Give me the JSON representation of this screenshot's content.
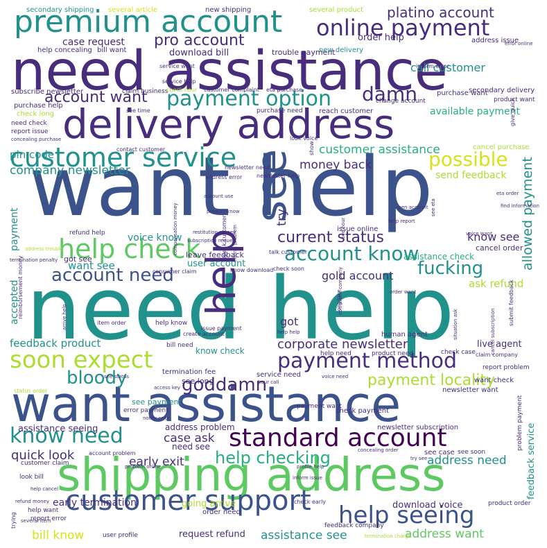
{
  "palette": {
    "purple": "#472d7b",
    "indigo": "#3b528b",
    "blue": "#2c728e",
    "teal": "#21918c",
    "green": "#28ae80",
    "lime": "#5ec962",
    "yellowgreen": "#addc30",
    "yellow": "#d8e219",
    "darkpurple": "#440154"
  },
  "words": [
    {
      "text": "want help",
      "color": "indigo"
    },
    {
      "text": "need help",
      "color": "teal"
    },
    {
      "text": "need assistance",
      "color": "purple"
    },
    {
      "text": "want assistance",
      "color": "indigo"
    },
    {
      "text": "shipping address",
      "color": "lime"
    },
    {
      "text": "delivery address",
      "color": "purple"
    },
    {
      "text": "premium account",
      "color": "teal"
    },
    {
      "text": "online payment",
      "color": "purple"
    },
    {
      "text": "customer service",
      "color": "teal"
    },
    {
      "text": "customer support",
      "color": "indigo"
    },
    {
      "text": "standard account",
      "color": "darkpurple"
    },
    {
      "text": "payment option",
      "color": "teal"
    },
    {
      "text": "help check",
      "color": "lime"
    },
    {
      "text": "soon expect",
      "color": "yellowgreen"
    },
    {
      "text": "help seeing",
      "color": "indigo"
    },
    {
      "text": "payment method",
      "color": "purple"
    },
    {
      "text": "help",
      "color": "purple"
    },
    {
      "text": "see",
      "color": "indigo"
    },
    {
      "text": "account know",
      "color": "teal"
    },
    {
      "text": "account need",
      "color": "indigo"
    },
    {
      "text": "current status",
      "color": "purple"
    },
    {
      "text": "know need",
      "color": "teal"
    },
    {
      "text": "help checking",
      "color": "green"
    },
    {
      "text": "bloody",
      "color": "teal"
    },
    {
      "text": "goddamn",
      "color": "purple"
    },
    {
      "text": "payment locality",
      "color": "yellowgreen"
    },
    {
      "text": "fucking",
      "color": "teal"
    },
    {
      "text": "account want",
      "color": "purple"
    },
    {
      "text": "damn",
      "color": "purple"
    },
    {
      "text": "possible",
      "color": "yellow"
    },
    {
      "text": "pro account",
      "color": "purple"
    },
    {
      "text": "platino account",
      "color": "purple"
    },
    {
      "text": "customer assistance",
      "color": "green"
    },
    {
      "text": "company newsletter",
      "color": "teal"
    },
    {
      "text": "money back",
      "color": "purple"
    },
    {
      "text": "allowed payment",
      "color": "teal"
    },
    {
      "text": "gold account",
      "color": "purple"
    },
    {
      "text": "corporate newsletter",
      "color": "purple"
    },
    {
      "text": "case ask",
      "color": "purple"
    },
    {
      "text": "quick look",
      "color": "purple"
    },
    {
      "text": "early exit",
      "color": "purple"
    },
    {
      "text": "address need",
      "color": "teal"
    },
    {
      "text": "assistance see",
      "color": "teal"
    },
    {
      "text": "address want",
      "color": "lime"
    },
    {
      "text": "bill know",
      "color": "yellow"
    },
    {
      "text": "know see",
      "color": "purple"
    },
    {
      "text": "ask refund",
      "color": "yellowgreen"
    },
    {
      "text": "call customer",
      "color": "teal"
    },
    {
      "text": "available payment",
      "color": "green"
    },
    {
      "text": "pin code",
      "color": "teal"
    },
    {
      "text": "want see",
      "color": "teal"
    },
    {
      "text": "feedback product",
      "color": "teal"
    },
    {
      "text": "try",
      "color": "purple"
    },
    {
      "text": "got",
      "color": "purple"
    },
    {
      "text": "got see",
      "color": "purple"
    },
    {
      "text": "accepted",
      "color": "teal"
    },
    {
      "text": "payment",
      "color": "teal"
    },
    {
      "text": "voice know",
      "color": "teal"
    },
    {
      "text": "user account",
      "color": "teal"
    },
    {
      "text": "download bill",
      "color": "purple"
    },
    {
      "text": "case request",
      "color": "purple"
    },
    {
      "text": "order help",
      "color": "purple"
    },
    {
      "text": "send feedback",
      "color": "yellowgreen"
    },
    {
      "text": "early termination",
      "color": "purple"
    },
    {
      "text": "going arrive",
      "color": "yellowgreen"
    },
    {
      "text": "download voice",
      "color": "purple"
    },
    {
      "text": "request refund",
      "color": "purple"
    },
    {
      "text": "see long",
      "color": "purple"
    },
    {
      "text": "see payment",
      "color": "teal"
    },
    {
      "text": "assistance seeing",
      "color": "purple"
    },
    {
      "text": "address problem",
      "color": "purple"
    },
    {
      "text": "need see",
      "color": "purple"
    },
    {
      "text": "feedback service",
      "color": "teal"
    },
    {
      "text": "live agent",
      "color": "purple"
    },
    {
      "text": "know check",
      "color": "teal"
    },
    {
      "text": "cancel order",
      "color": "purple"
    },
    {
      "text": "assistance check",
      "color": "green"
    },
    {
      "text": "leave feedback",
      "color": "purple"
    },
    {
      "text": "termination fee",
      "color": "purple"
    },
    {
      "text": "secondary shipping",
      "color": "teal"
    },
    {
      "text": "several article",
      "color": "yellow"
    },
    {
      "text": "new shipping",
      "color": "purple"
    },
    {
      "text": "several product",
      "color": "yellowgreen"
    },
    {
      "text": "trouble payment",
      "color": "purple"
    },
    {
      "text": "address issue",
      "color": "purple"
    },
    {
      "text": "help concealing",
      "color": "purple"
    },
    {
      "text": "bill want",
      "color": "purple"
    },
    {
      "text": "new delivery",
      "color": "teal"
    },
    {
      "text": "inform error",
      "color": "purple"
    },
    {
      "text": "service want",
      "color": "purple"
    },
    {
      "text": "service help",
      "color": "purple"
    },
    {
      "text": "subscribe newsletter",
      "color": "purple"
    },
    {
      "text": "claim business",
      "color": "purple"
    },
    {
      "text": "check hour",
      "color": "yellowgreen"
    },
    {
      "text": "customer complaint",
      "color": "purple"
    },
    {
      "text": "eta purchase",
      "color": "purple"
    },
    {
      "text": "secondary delivery",
      "color": "purple"
    },
    {
      "text": "purchase want",
      "color": "purple"
    },
    {
      "text": "product want",
      "color": "purple"
    },
    {
      "text": "purchase help",
      "color": "purple"
    },
    {
      "text": "check long",
      "color": "yellowgreen"
    },
    {
      "text": "see time",
      "color": "purple"
    },
    {
      "text": "purchase need",
      "color": "purple"
    },
    {
      "text": "reach customer",
      "color": "purple"
    },
    {
      "text": "change account",
      "color": "purple"
    },
    {
      "text": "need check",
      "color": "purple"
    },
    {
      "text": "report issue",
      "color": "purple"
    },
    {
      "text": "concealing purchase",
      "color": "purple"
    },
    {
      "text": "contact customer",
      "color": "purple"
    },
    {
      "text": "newsletter need",
      "color": "purple"
    },
    {
      "text": "newsletter help",
      "color": "purple"
    },
    {
      "text": "address error",
      "color": "purple"
    },
    {
      "text": "cancel purchase",
      "color": "yellowgreen"
    },
    {
      "text": "human agent",
      "color": "purple"
    },
    {
      "text": "check case",
      "color": "purple"
    },
    {
      "text": "claim company",
      "color": "purple"
    },
    {
      "text": "report problem",
      "color": "purple"
    },
    {
      "text": "want check",
      "color": "purple"
    },
    {
      "text": "help need",
      "color": "purple"
    },
    {
      "text": "product need",
      "color": "purple"
    },
    {
      "text": "service need",
      "color": "purple"
    },
    {
      "text": "newsletter want",
      "color": "purple"
    },
    {
      "text": "check payment",
      "color": "purple"
    },
    {
      "text": "newsletter subscription",
      "color": "purple"
    },
    {
      "text": "problem payment",
      "color": "purple"
    },
    {
      "text": "see soon",
      "color": "purple"
    },
    {
      "text": "see case",
      "color": "purple"
    },
    {
      "text": "customer claim",
      "color": "purple"
    },
    {
      "text": "look bill",
      "color": "purple"
    },
    {
      "text": "help cancel",
      "color": "purple"
    },
    {
      "text": "refund money",
      "color": "purple"
    },
    {
      "text": "help want",
      "color": "purple"
    },
    {
      "text": "report error",
      "color": "purple"
    },
    {
      "text": "order need",
      "color": "purple"
    },
    {
      "text": "check early",
      "color": "purple"
    },
    {
      "text": "feedback company",
      "color": "purple"
    },
    {
      "text": "product order",
      "color": "purple"
    },
    {
      "text": "user profile",
      "color": "purple"
    },
    {
      "text": "inform issue",
      "color": "purple"
    },
    {
      "text": "profile help",
      "color": "purple"
    },
    {
      "text": "concealing order",
      "color": "purple"
    },
    {
      "text": "try see",
      "color": "purple"
    },
    {
      "text": "account problem",
      "color": "purple"
    },
    {
      "text": "problem online",
      "color": "purple"
    },
    {
      "text": "error payment",
      "color": "purple"
    },
    {
      "text": "notify error",
      "color": "purple"
    },
    {
      "text": "payment want",
      "color": "purple"
    },
    {
      "text": "hour call",
      "color": "purple"
    },
    {
      "text": "see status",
      "color": "purple"
    },
    {
      "text": "access key",
      "color": "purple"
    },
    {
      "text": "bill need",
      "color": "purple"
    },
    {
      "text": "help know",
      "color": "purple"
    },
    {
      "text": "item order",
      "color": "purple"
    },
    {
      "text": "submit feedback",
      "color": "purple"
    },
    {
      "text": "cancel subscription",
      "color": "purple"
    },
    {
      "text": "situation ask",
      "color": "purple"
    },
    {
      "text": "long take",
      "color": "purple"
    },
    {
      "text": "issue payment",
      "color": "purple"
    },
    {
      "text": "create account",
      "color": "purple"
    },
    {
      "text": "consumer claim",
      "color": "purple"
    },
    {
      "text": "know download",
      "color": "purple"
    },
    {
      "text": "check soon",
      "color": "purple"
    },
    {
      "text": "talk customer",
      "color": "purple"
    },
    {
      "text": "speak customer",
      "color": "purple"
    },
    {
      "text": "inform problem",
      "color": "purple"
    },
    {
      "text": "issue online",
      "color": "purple"
    },
    {
      "text": "voice want",
      "color": "purple"
    },
    {
      "text": "eta order",
      "color": "purple"
    },
    {
      "text": "find information",
      "color": "purple"
    },
    {
      "text": "refund help",
      "color": "purple"
    },
    {
      "text": "address trouble",
      "color": "yellowgreen"
    },
    {
      "text": "termination penalty",
      "color": "purple"
    },
    {
      "text": "reimbursement money",
      "color": "purple"
    },
    {
      "text": "trying",
      "color": "purple"
    },
    {
      "text": "several item",
      "color": "purple"
    },
    {
      "text": "show",
      "color": "purple"
    },
    {
      "text": "look voice",
      "color": "purple"
    },
    {
      "text": "give quick",
      "color": "purple"
    },
    {
      "text": "error online",
      "color": "purple"
    },
    {
      "text": "account use",
      "color": "purple"
    },
    {
      "text": "product know",
      "color": "purple"
    },
    {
      "text": "restitution money",
      "color": "purple"
    },
    {
      "text": "subscription request",
      "color": "purple"
    },
    {
      "text": "compensation money",
      "color": "purple"
    },
    {
      "text": "open account",
      "color": "purple"
    },
    {
      "text": "see eta",
      "color": "purple"
    },
    {
      "text": "help report",
      "color": "purple"
    },
    {
      "text": "see hour",
      "color": "purple"
    },
    {
      "text": "order want",
      "color": "purple"
    },
    {
      "text": "complaint company",
      "color": "purple"
    },
    {
      "text": "arrive help",
      "color": "purple"
    },
    {
      "text": "help help",
      "color": "purple"
    },
    {
      "text": "voice need",
      "color": "purple"
    },
    {
      "text": "status order",
      "color": "yellowgreen"
    },
    {
      "text": "termination charge",
      "color": "yellowgreen"
    }
  ]
}
